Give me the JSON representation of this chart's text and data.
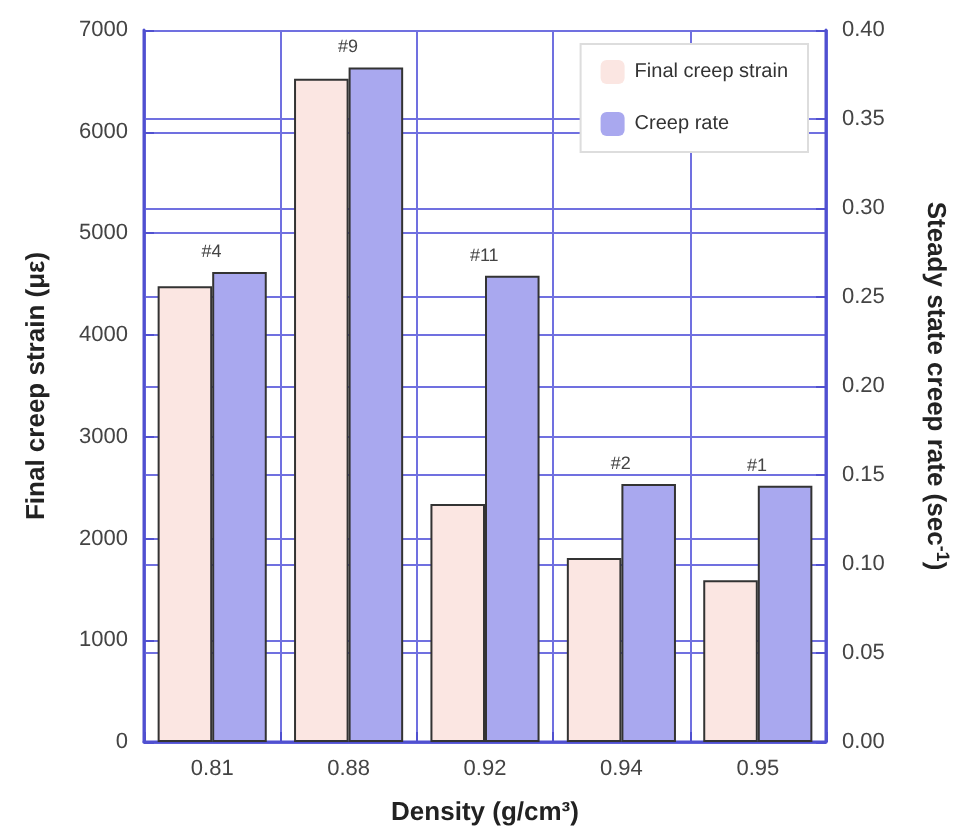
{
  "chart_data": {
    "type": "bar",
    "xlabel": "Density (g/cm³)",
    "ylabel": "Final creep strain (με)",
    "y2label": "Steady state creep rate (sec$^{-1}$)",
    "categories": [
      "0.81",
      "0.88",
      "0.92",
      "0.94",
      "0.95"
    ],
    "series": [
      {
        "name": "Final creep strain",
        "color": "#fbe6e2",
        "values": [
          4480,
          6520,
          2340,
          1810,
          1590
        ]
      },
      {
        "name": "Creep rate",
        "color": "#a9a8ef",
        "axis": "y2",
        "values": [
          0.264,
          0.379,
          0.262,
          0.145,
          0.144
        ]
      }
    ],
    "ylim": [
      0,
      7000
    ],
    "yticks": [
      0,
      1000,
      2000,
      3000,
      4000,
      5000,
      6000,
      7000
    ],
    "y2lim": [
      0,
      0.4
    ],
    "y2ticks": [
      {
        "value": 0,
        "label": "0.00"
      },
      {
        "value": 0.05,
        "label": "0.05"
      },
      {
        "value": 0.1,
        "label": "0.10"
      },
      {
        "value": 0.15,
        "label": "0.15"
      },
      {
        "value": 0.2,
        "label": "0.20"
      },
      {
        "value": 0.25,
        "label": "0.25"
      },
      {
        "value": 0.3,
        "label": "0.30"
      },
      {
        "value": 0.35,
        "label": "0.35"
      },
      {
        "value": 0.4,
        "label": "0.40"
      }
    ],
    "annotations": [
      "#4",
      "#9",
      "#11",
      "#2",
      "#1"
    ],
    "grid": true,
    "legend": "top right"
  }
}
